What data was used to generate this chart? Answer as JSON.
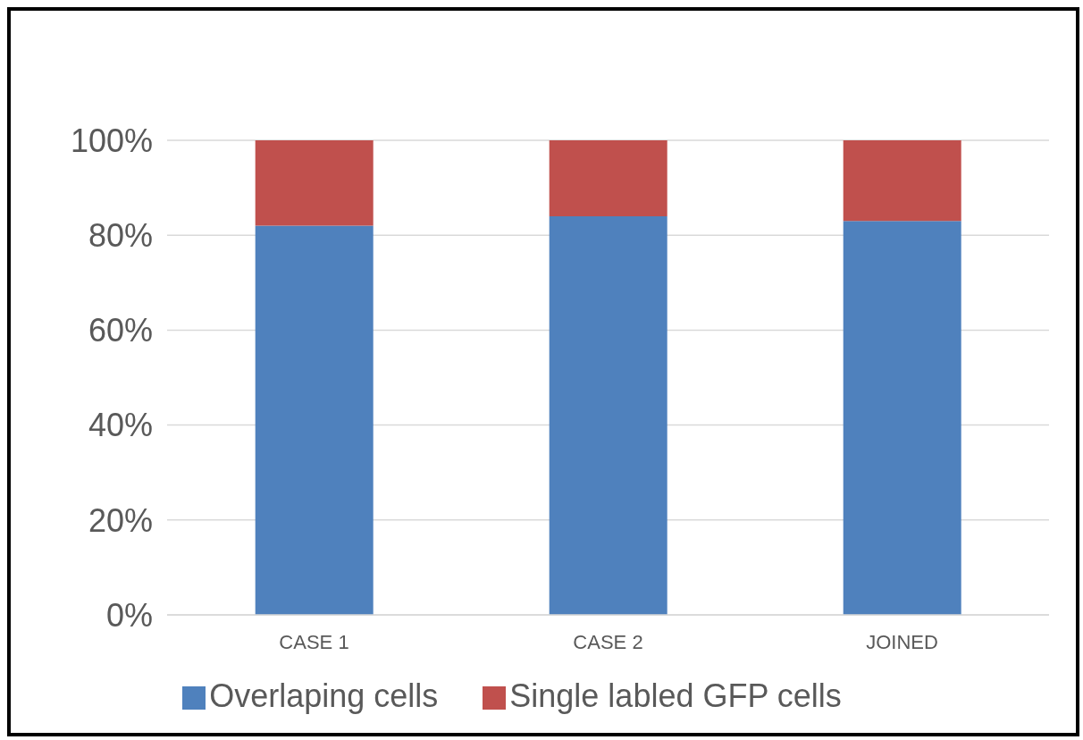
{
  "chart_data": {
    "type": "bar",
    "categories": [
      "CASE 1",
      "CASE 2",
      "JOINED"
    ],
    "stacked": true,
    "series": [
      {
        "name": "Overlaping cells",
        "color": "#4f81bd",
        "values": [
          82,
          84,
          83
        ]
      },
      {
        "name": "Single labled GFP cells",
        "color": "#c0504d",
        "values": [
          18,
          16,
          17
        ]
      }
    ],
    "ylim": [
      0,
      100
    ],
    "yticks": [
      {
        "value": 0,
        "label": "0%"
      },
      {
        "value": 20,
        "label": "20%"
      },
      {
        "value": 40,
        "label": "40%"
      },
      {
        "value": 60,
        "label": "60%"
      },
      {
        "value": 80,
        "label": "80%"
      },
      {
        "value": 100,
        "label": "100%"
      }
    ],
    "grid": "y",
    "legend": "bottom"
  }
}
